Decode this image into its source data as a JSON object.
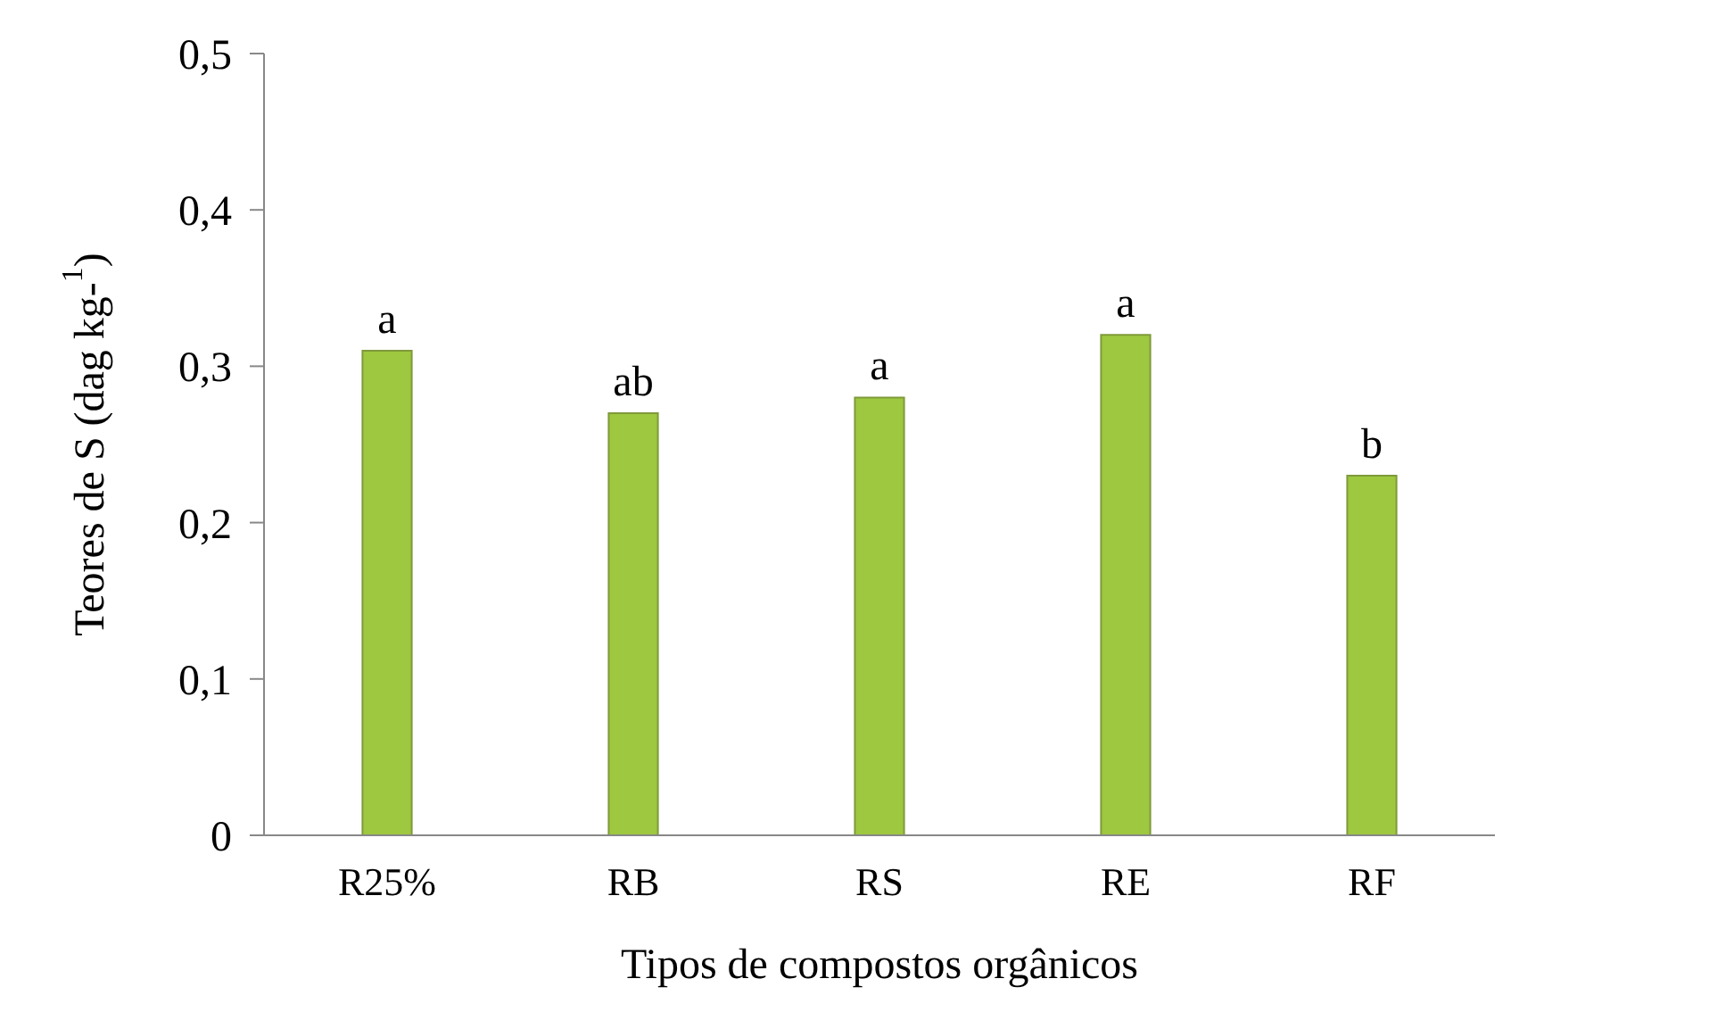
{
  "chart_data": {
    "type": "bar",
    "xlabel": "Tipos de compostos orgânicos",
    "ylabel": "Teores de S (dag kg-$^{1}$)",
    "categories": [
      "R25%",
      "RB",
      "RS",
      "RE",
      "RF"
    ],
    "values": [
      0.31,
      0.27,
      0.28,
      0.32,
      0.23
    ],
    "color": "#9dc83f",
    "ylim": [
      0,
      0.5
    ],
    "yticks": [
      0,
      {
        "value": 0.1,
        "label": "0,1"
      },
      {
        "value": 0.2,
        "label": "0,2"
      },
      {
        "value": 0.3,
        "label": "0,3"
      },
      {
        "value": 0.4,
        "label": "0,4"
      },
      {
        "value": 0.5,
        "label": "0,5"
      }
    ],
    "annotations": [
      {
        "text": "a",
        "x": "R25%",
        "y": 0.31
      },
      {
        "text": "ab",
        "x": "RB",
        "y": 0.27
      },
      {
        "text": "a",
        "x": "RS",
        "y": 0.28
      },
      {
        "text": "a",
        "x": "RE",
        "y": 0.32
      },
      {
        "text": "b",
        "x": "RF",
        "y": 0.23
      }
    ],
    "grid": false,
    "legend": false
  }
}
